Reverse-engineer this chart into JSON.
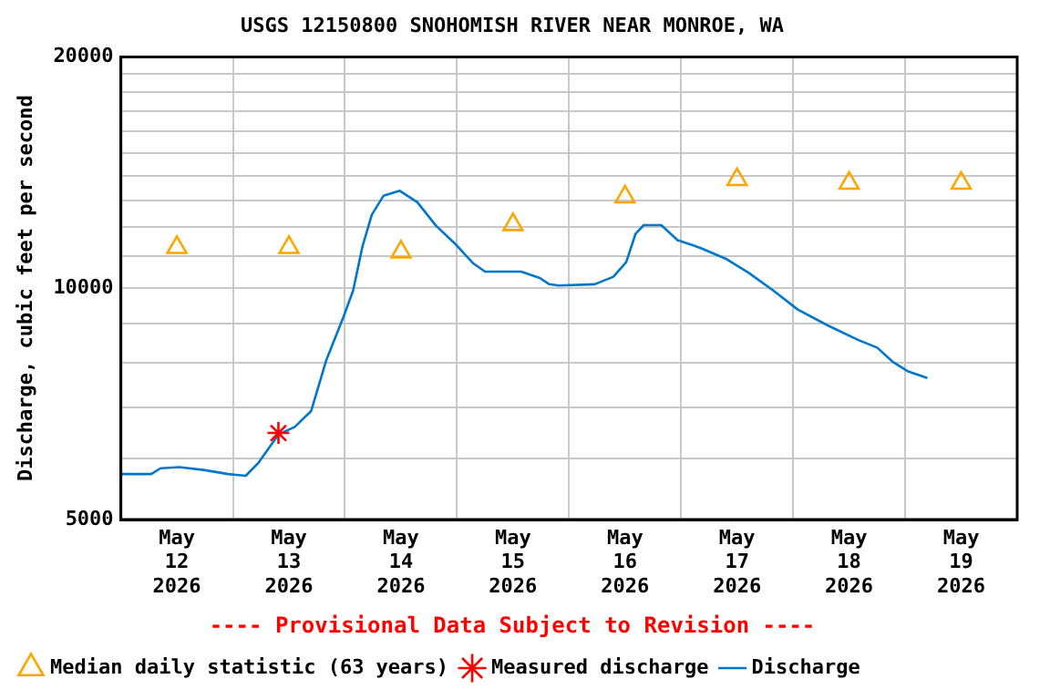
{
  "chart_data": {
    "type": "line",
    "title": "USGS 12150800 SNOHOMISH RIVER NEAR MONROE, WA",
    "ylabel": "Discharge, cubic feet per second",
    "annotations": [
      "---- Provisional Data Subject to Revision ----"
    ],
    "log": "y",
    "grid": true,
    "legend": "bottom left",
    "xlim": [
      "2026-05-12T00:00",
      "2026-05-20T00:00"
    ],
    "xticks": [
      {
        "value": "2026-05-12T00:00",
        "label": null
      },
      {
        "value": "2026-05-12T12:00",
        "label": "May\n12\n2026"
      },
      {
        "value": "2026-05-13T00:00",
        "label": null
      },
      {
        "value": "2026-05-13T12:00",
        "label": "May\n13\n2026"
      },
      {
        "value": "2026-05-14T00:00",
        "label": null
      },
      {
        "value": "2026-05-14T12:00",
        "label": "May\n14\n2026"
      },
      {
        "value": "2026-05-15T00:00",
        "label": null
      },
      {
        "value": "2026-05-15T12:00",
        "label": "May\n15\n2026"
      },
      {
        "value": "2026-05-16T00:00",
        "label": null
      },
      {
        "value": "2026-05-16T12:00",
        "label": "May\n16\n2026"
      },
      {
        "value": "2026-05-17T00:00",
        "label": null
      },
      {
        "value": "2026-05-17T12:00",
        "label": "May\n17\n2026"
      },
      {
        "value": "2026-05-18T00:00",
        "label": null
      },
      {
        "value": "2026-05-18T12:00",
        "label": "May\n18\n2026"
      },
      {
        "value": "2026-05-19T00:00",
        "label": null
      },
      {
        "value": "2026-05-19T12:00",
        "label": "May\n19\n2026"
      },
      {
        "value": "2026-05-20T00:00",
        "label": null
      }
    ],
    "ylim": [
      5000,
      20000
    ],
    "yticks": [
      5000,
      {
        "value": 6000,
        "label": null
      },
      {
        "value": 7000,
        "label": null
      },
      {
        "value": 8000,
        "label": null
      },
      {
        "value": 9000,
        "label": null
      },
      10000,
      {
        "value": 11000,
        "label": null
      },
      {
        "value": 12000,
        "label": null
      },
      {
        "value": 13000,
        "label": null
      },
      {
        "value": 14000,
        "label": null
      },
      {
        "value": 15000,
        "label": null
      },
      {
        "value": 16000,
        "label": null
      },
      {
        "value": 17000,
        "label": null
      },
      {
        "value": 18000,
        "label": null
      },
      {
        "value": 19000,
        "label": null
      },
      20000
    ],
    "series": [
      {
        "name": "Median daily statistic (63 years)",
        "type": "scatter",
        "marker": "triangle",
        "color": "#ffa500",
        "x": [
          "2026-05-12T12:00",
          "2026-05-13T12:00",
          "2026-05-14T12:00",
          "2026-05-15T12:00",
          "2026-05-16T12:00",
          "2026-05-17T12:00",
          "2026-05-18T12:00",
          "2026-05-19T12:00"
        ],
        "values": [
          11300,
          11300,
          11150,
          12100,
          13150,
          13850,
          13700,
          13700
        ]
      },
      {
        "name": "Measured discharge",
        "type": "scatter",
        "marker": "cross",
        "color": "#ff0000",
        "x": [
          "2026-05-13T09:45"
        ],
        "values": [
          6480
        ]
      },
      {
        "name": "Discharge",
        "marker": "none",
        "color": "#0077cc",
        "x": [
          "2026-05-12T00:00",
          "2026-05-12T06:30",
          "2026-05-12T08:30",
          "2026-05-12T12:30",
          "2026-05-12T17:45",
          "2026-05-12T23:00",
          "2026-05-13T02:45",
          "2026-05-13T05:30",
          "2026-05-13T09:45",
          "2026-05-13T13:15",
          "2026-05-13T16:45",
          "2026-05-13T20:00",
          "2026-05-13T23:45",
          "2026-05-14T01:45",
          "2026-05-14T03:45",
          "2026-05-14T05:45",
          "2026-05-14T08:15",
          "2026-05-14T11:45",
          "2026-05-14T15:30",
          "2026-05-14T19:30",
          "2026-05-14T23:30",
          "2026-05-15T03:30",
          "2026-05-15T06:00",
          "2026-05-15T13:45",
          "2026-05-15T17:45",
          "2026-05-15T19:45",
          "2026-05-15T21:45",
          "2026-05-16T05:30",
          "2026-05-16T09:30",
          "2026-05-16T12:15",
          "2026-05-16T14:15",
          "2026-05-16T16:00",
          "2026-05-16T19:45",
          "2026-05-16T23:15",
          "2026-05-17T04:00",
          "2026-05-17T09:45",
          "2026-05-17T14:30",
          "2026-05-17T19:45",
          "2026-05-18T01:00",
          "2026-05-18T07:30",
          "2026-05-18T14:00",
          "2026-05-18T18:00",
          "2026-05-18T21:15",
          "2026-05-19T00:30",
          "2026-05-19T04:45"
        ],
        "values": [
          5730,
          5730,
          5830,
          5850,
          5800,
          5730,
          5700,
          5930,
          6450,
          6600,
          6920,
          8060,
          9200,
          9930,
          11330,
          12460,
          13190,
          13390,
          12940,
          12060,
          11440,
          10770,
          10510,
          10510,
          10310,
          10120,
          10080,
          10120,
          10350,
          10810,
          11770,
          12080,
          12080,
          11550,
          11290,
          10910,
          10470,
          9930,
          9380,
          8940,
          8560,
          8370,
          8030,
          7800,
          7640
        ]
      }
    ]
  }
}
